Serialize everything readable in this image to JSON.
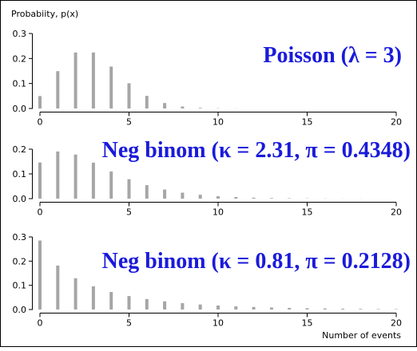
{
  "ylabel": "Probabiity, p(x)",
  "xlabel": "Number of events",
  "chart_data": [
    {
      "type": "bar",
      "title": "Poisson (λ = 3)",
      "x": [
        0,
        1,
        2,
        3,
        4,
        5,
        6,
        7,
        8,
        9,
        10,
        11,
        12,
        13,
        14,
        15,
        16,
        17,
        18,
        19,
        20
      ],
      "values": [
        0.0498,
        0.1494,
        0.224,
        0.224,
        0.168,
        0.1008,
        0.0504,
        0.0216,
        0.0081,
        0.0027,
        0.0008,
        0.0002,
        0.0001,
        0,
        0,
        0,
        0,
        0,
        0,
        0,
        0
      ],
      "xlim": [
        0,
        20
      ],
      "ylim": [
        0,
        0.3
      ],
      "xticks": [
        "0",
        "5",
        "10",
        "15",
        "20"
      ],
      "yticks": [
        "0.0",
        "0.1",
        "0.2",
        "0.3"
      ]
    },
    {
      "type": "bar",
      "title": "Neg binom (κ = 2.31, π = 0.4348)",
      "x": [
        0,
        1,
        2,
        3,
        4,
        5,
        6,
        7,
        8,
        9,
        10,
        11,
        12,
        13,
        14,
        15,
        16,
        17,
        18,
        19,
        20
      ],
      "values": [
        0.146,
        0.1906,
        0.1785,
        0.1455,
        0.1098,
        0.0788,
        0.0546,
        0.0368,
        0.0243,
        0.0157,
        0.01,
        0.0063,
        0.004,
        0.0024,
        0.0015,
        0.0009,
        0.0006,
        0.0003,
        0.0002,
        0.0001,
        0.0001
      ],
      "xlim": [
        0,
        20
      ],
      "ylim": [
        0,
        0.2
      ],
      "xticks": [
        "0",
        "5",
        "10",
        "15",
        "20"
      ],
      "yticks": [
        "0.0",
        "0.1",
        "0.2"
      ]
    },
    {
      "type": "bar",
      "title": "Neg binom (κ = 0.81, π = 0.2128)",
      "x": [
        0,
        1,
        2,
        3,
        4,
        5,
        6,
        7,
        8,
        9,
        10,
        11,
        12,
        13,
        14,
        15,
        16,
        17,
        18,
        19,
        20
      ],
      "values": [
        0.2852,
        0.1818,
        0.1293,
        0.0958,
        0.0726,
        0.0557,
        0.0432,
        0.0338,
        0.0265,
        0.0209,
        0.0165,
        0.0131,
        0.0104,
        0.0083,
        0.0066,
        0.0052,
        0.0042,
        0.0033,
        0.0027,
        0.0021,
        0.0017
      ],
      "xlim": [
        0,
        20
      ],
      "ylim": [
        0,
        0.3
      ],
      "xticks": [
        "0",
        "5",
        "10",
        "15",
        "20"
      ],
      "yticks": [
        "0.0",
        "0.1",
        "0.2",
        "0.3"
      ]
    }
  ]
}
